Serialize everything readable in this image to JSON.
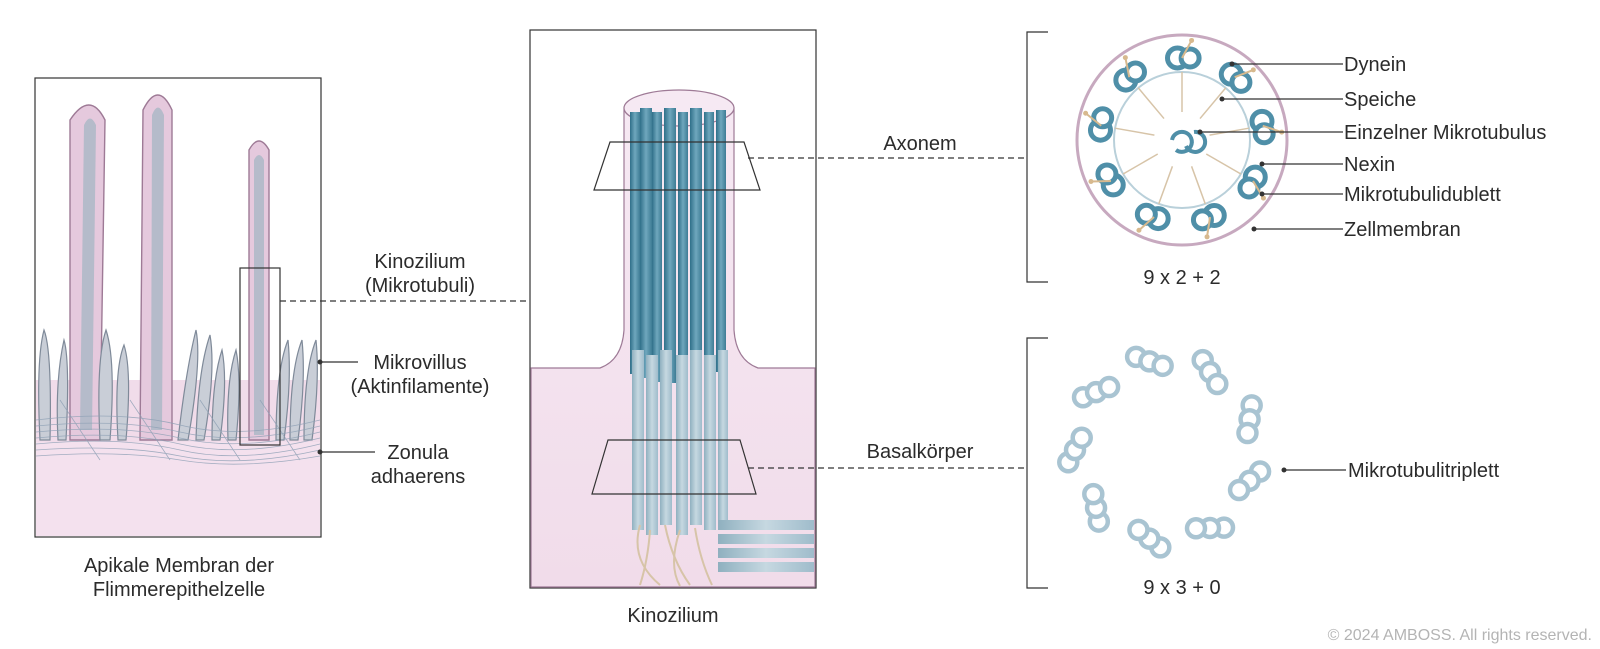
{
  "panel_left": {
    "caption_line1": "Apikale Membran der",
    "caption_line2": "Flimmerepithelzelle",
    "label_kinozilium_line1": "Kinozilium",
    "label_kinozilium_line2": "(Mikrotubuli)",
    "label_mikrovillus_line1": "Mikrovillus",
    "label_mikrovillus_line2": "(Aktinfilamente)",
    "label_zonula_line1": "Zonula",
    "label_zonula_line2": "adhaerens"
  },
  "panel_middle": {
    "caption": "Kinozilium",
    "label_axonem": "Axonem",
    "label_basalkoerper": "Basalkörper"
  },
  "panel_right_top": {
    "labels": [
      "Dynein",
      "Speiche",
      "Einzelner Mikrotubulus",
      "Nexin",
      "Mikrotubulidublett",
      "Zellmembran"
    ],
    "formula": "9 x 2 + 2"
  },
  "panel_right_bottom": {
    "label": "Mikrotubulitriplett",
    "formula": "9 x 3 + 0"
  },
  "copyright": "© 2024 AMBOSS. All rights reserved.",
  "colors": {
    "membrane": "#f3e3ef",
    "membrane_edge": "#9e7a96",
    "microtubule": "#4f8fa8",
    "microtubule_light": "#9fc0cf",
    "dynein": "#d7b98e"
  }
}
